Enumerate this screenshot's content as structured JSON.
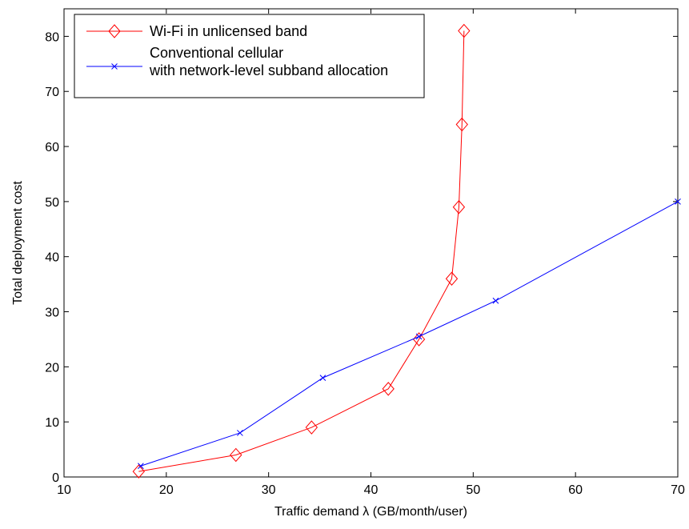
{
  "chart_data": {
    "type": "line",
    "title": "",
    "xlabel": "Traffic demand λ (GB/month/user)",
    "ylabel": "Total deployment cost",
    "xlim": [
      10,
      70
    ],
    "ylim": [
      0,
      85
    ],
    "xticks": [
      10,
      20,
      30,
      40,
      50,
      60,
      70
    ],
    "yticks": [
      0,
      10,
      20,
      30,
      40,
      50,
      60,
      70,
      80
    ],
    "grid": false,
    "legend_position": "top-left",
    "series": [
      {
        "name": "Wi-Fi in unlicensed band",
        "color": "#ff0000",
        "marker": "diamond",
        "x": [
          17.3,
          26.8,
          34.2,
          41.7,
          44.7,
          47.9,
          48.6,
          48.9,
          49.1
        ],
        "y": [
          1,
          4,
          9,
          16,
          25,
          36,
          49,
          64,
          81
        ]
      },
      {
        "name": "Conventional cellular\nwith network-level subband allocation",
        "color": "#0000ff",
        "marker": "x",
        "x": [
          17.5,
          27.2,
          35.3,
          44.7,
          52.2,
          70
        ],
        "y": [
          2,
          8,
          18,
          25.5,
          32,
          50
        ]
      }
    ]
  }
}
